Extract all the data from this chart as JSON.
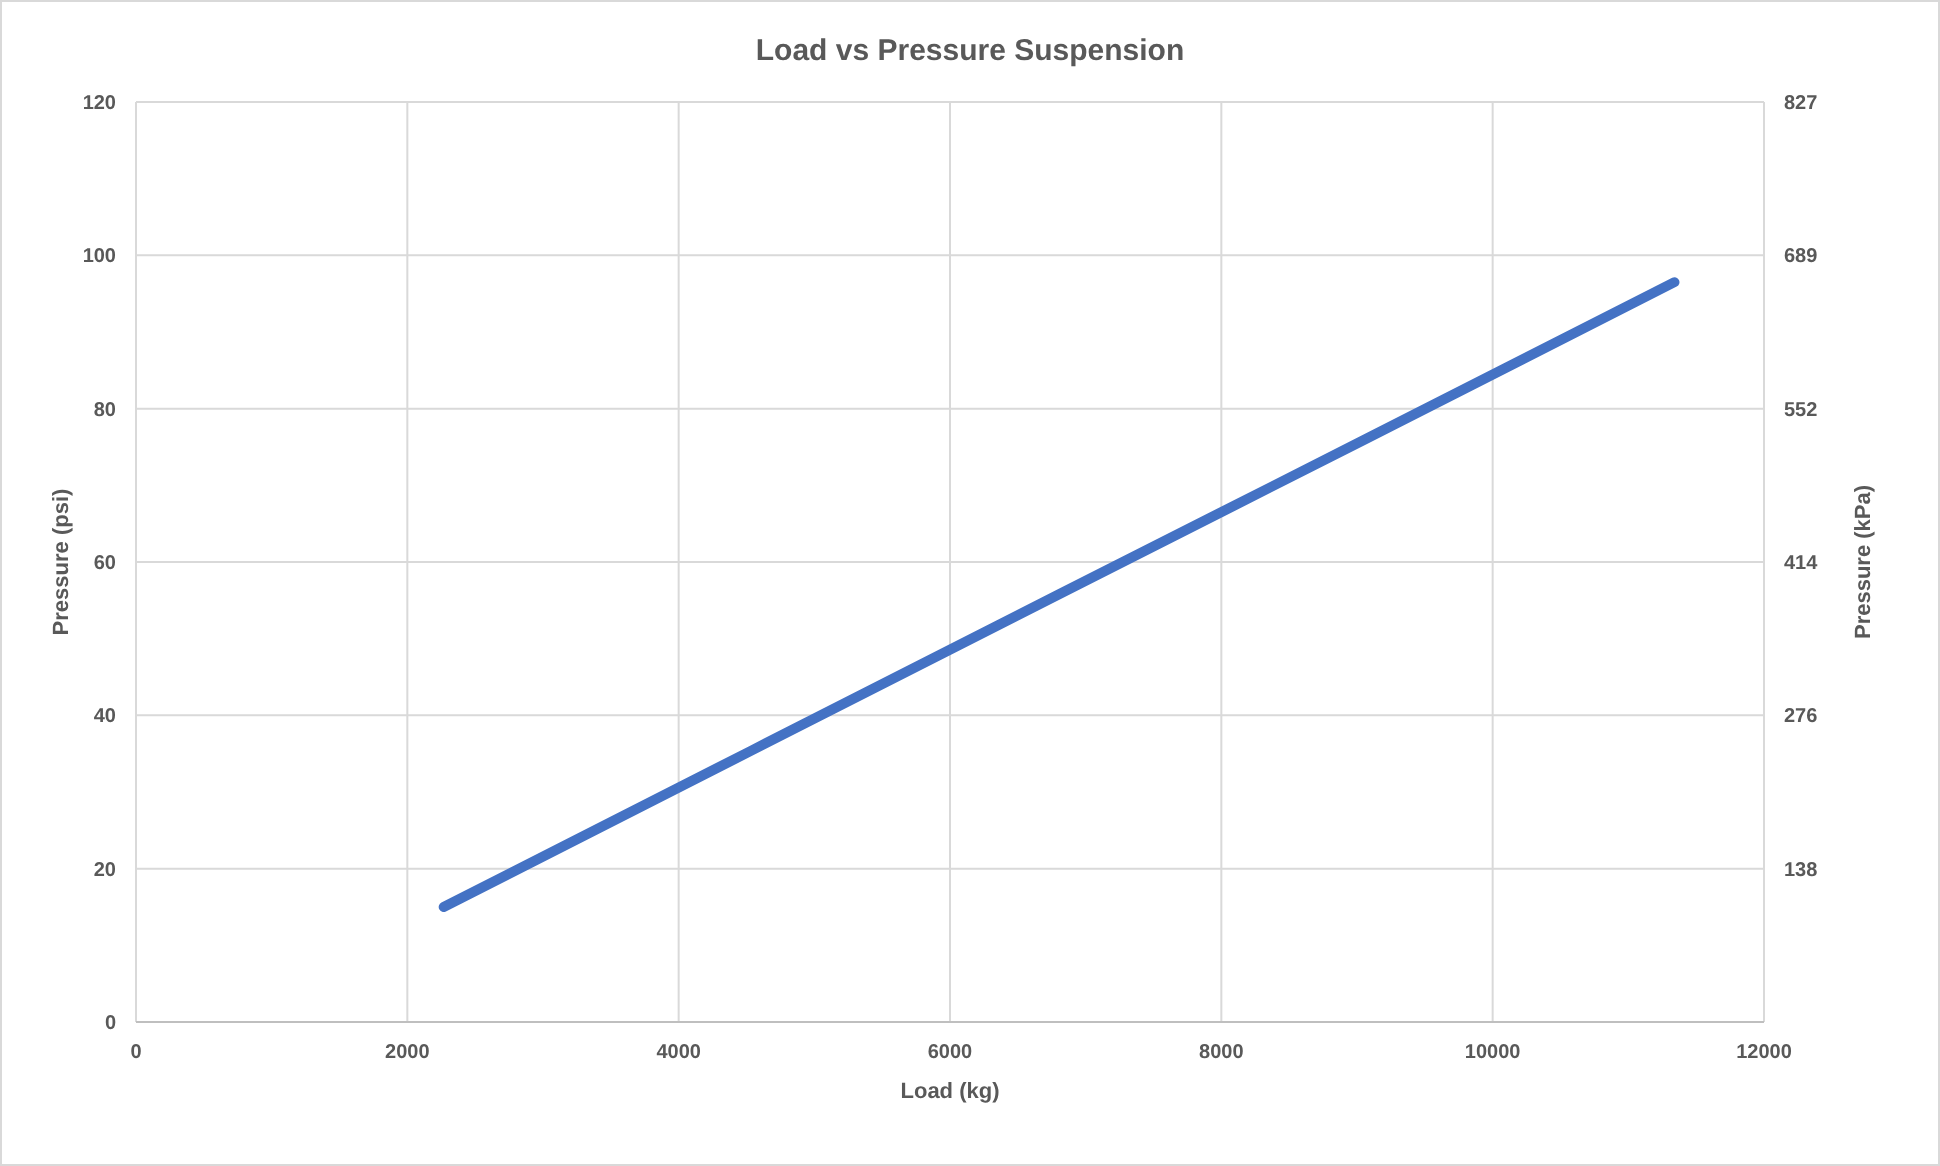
{
  "chart_data": {
    "type": "line",
    "title": "Load vs Pressure Suspension",
    "xlabel": "Load (kg)",
    "ylabel": "Pressure (psi)",
    "y2label": "Pressure (kPa)",
    "x": [
      2268,
      4536,
      6804,
      9072,
      11340
    ],
    "series": [
      {
        "color": "#4472c4",
        "values": [
          15,
          35.4,
          55.8,
          76.1,
          96.5
        ]
      }
    ],
    "xlim": [
      0,
      12000
    ],
    "xticks": [
      0,
      2000,
      4000,
      6000,
      8000,
      10000,
      12000
    ],
    "ylim": [
      0,
      120
    ],
    "yticks": [
      0,
      20,
      40,
      60,
      80,
      100,
      120
    ],
    "y2lim": [
      0,
      827.4
    ],
    "y2ticks": [
      {
        "value": 137.9,
        "label": "138"
      },
      {
        "value": 275.8,
        "label": "276"
      },
      {
        "value": 413.7,
        "label": "414"
      },
      {
        "value": 551.6,
        "label": "552"
      },
      {
        "value": 689.5,
        "label": "689"
      },
      {
        "value": 827.4,
        "label": "827"
      }
    ],
    "grid": true,
    "marker": "none",
    "line_style": "solid"
  }
}
